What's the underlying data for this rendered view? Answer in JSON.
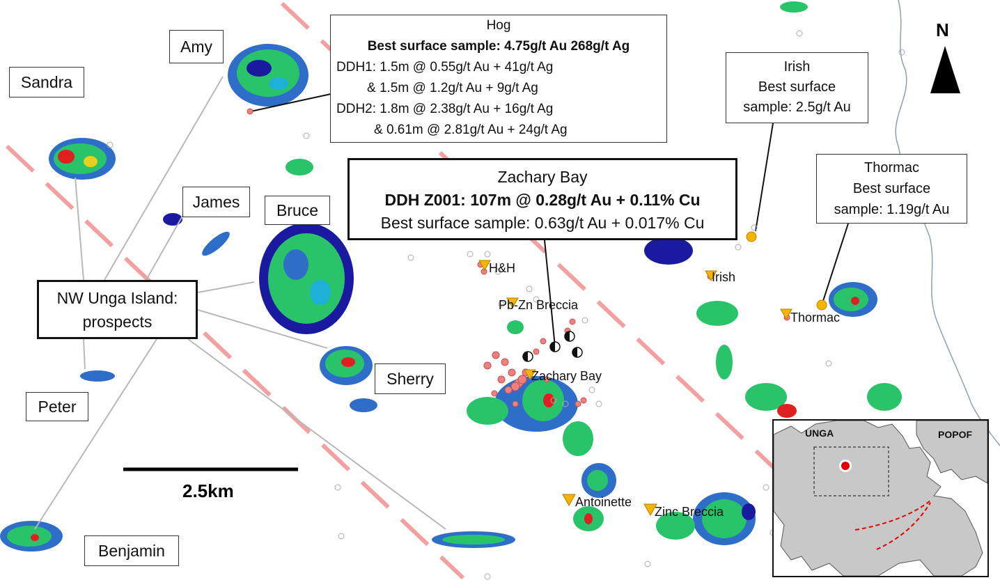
{
  "prospect_labels": {
    "amy": "Amy",
    "sandra": "Sandra",
    "james": "James",
    "bruce": "Bruce",
    "sherry": "Sherry",
    "peter": "Peter",
    "benjamin": "Benjamin"
  },
  "nw_unga": {
    "line1": "NW Unga Island:",
    "line2": "prospects"
  },
  "hog": {
    "title": "Hog",
    "best": "Best surface sample: 4.75g/t Au 268g/t Ag",
    "ddh1a": "DDH1: 1.5m @ 0.55g/t Au + 41g/t Ag",
    "ddh1b": "& 1.5m @ 1.2g/t Au + 9g/t Ag",
    "ddh2a": "DDH2: 1.8m @ 2.38g/t Au + 16g/t Ag",
    "ddh2b": "& 0.61m @ 2.81g/t Au + 24g/t Ag"
  },
  "zachary": {
    "title": "Zachary Bay",
    "ddh": "DDH Z001: 107m @ 0.28g/t Au + 0.11% Cu",
    "best": "Best surface sample: 0.63g/t Au + 0.017% Cu"
  },
  "irish_box": {
    "title": "Irish",
    "line2": "Best surface",
    "line3": "sample: 2.5g/t Au"
  },
  "thormac_box": {
    "title": "Thormac",
    "line2": "Best surface",
    "line3": "sample: 1.19g/t Au"
  },
  "places": {
    "hh": "H&H",
    "pbzn": "Pb-Zn Breccia",
    "zachary": "Zachary Bay",
    "irish": "Irish",
    "thormac": "Thormac",
    "antoinette": "Antoinette",
    "zinc": "Zinc Breccia"
  },
  "scale": "2.5km",
  "north": "N",
  "inset": {
    "unga": "UNGA",
    "popof": "POPOF"
  },
  "colors": {
    "fault": "#f4a0a0",
    "sample": "#f08080",
    "prospect_marker": "#f5b400",
    "gold_dot": "#f5b400",
    "alteration_low": "#1a1aa0",
    "alteration_mid": "#29c46a",
    "alteration_high": "#e02020"
  }
}
